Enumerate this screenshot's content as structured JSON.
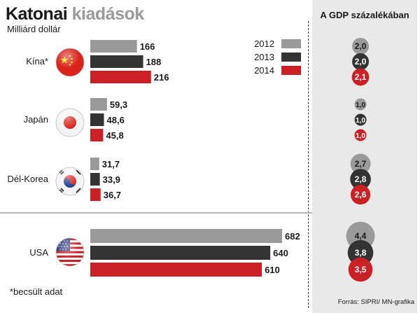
{
  "header": {
    "title_part1": "Katonai",
    "title_part2": "kiadások",
    "subtitle": "Milliárd dollár"
  },
  "gdp_panel": {
    "title": "A GDP százalékában"
  },
  "legend": [
    {
      "label": "2012",
      "color": "#9a9a9a"
    },
    {
      "label": "2013",
      "color": "#333333"
    },
    {
      "label": "2014",
      "color": "#cc2027"
    }
  ],
  "footnote": "*becsült adat",
  "source": "Forrás: SIPRI/ MN-grafika",
  "chart_data": {
    "type": "bar",
    "title": "Katonai kiadások",
    "unit": "Milliárd dollár",
    "categories": [
      "Kína*",
      "Japán",
      "Dél-Korea",
      "USA"
    ],
    "series": [
      {
        "name": "2012",
        "color": "#9a9a9a",
        "values": [
          166,
          59.3,
          31.7,
          682
        ],
        "labels": [
          "166",
          "59,3",
          "31,7",
          "682"
        ]
      },
      {
        "name": "2013",
        "color": "#333333",
        "values": [
          188,
          48.6,
          33.9,
          640
        ],
        "labels": [
          "188",
          "48,6",
          "33,9",
          "640"
        ]
      },
      {
        "name": "2014",
        "color": "#cc2027",
        "values": [
          216,
          45.8,
          36.7,
          610
        ],
        "labels": [
          "216",
          "45,8",
          "36,7",
          "610"
        ]
      }
    ],
    "gdp_percent": {
      "title": "A GDP százalékában",
      "series": [
        {
          "name": "2012",
          "values": [
            2.0,
            1.0,
            2.7,
            4.4
          ],
          "labels": [
            "2,0",
            "1,0",
            "2,7",
            "4,4"
          ]
        },
        {
          "name": "2013",
          "values": [
            2.0,
            1.0,
            2.8,
            3.8
          ],
          "labels": [
            "2,0",
            "1,0",
            "2,8",
            "3,8"
          ]
        },
        {
          "name": "2014",
          "values": [
            2.1,
            1.0,
            2.6,
            3.5
          ],
          "labels": [
            "2,1",
            "1,0",
            "2,6",
            "3,5"
          ]
        }
      ]
    },
    "flags": [
      "china-flag-icon",
      "japan-flag-icon",
      "south-korea-flag-icon",
      "usa-flag-icon"
    ]
  }
}
